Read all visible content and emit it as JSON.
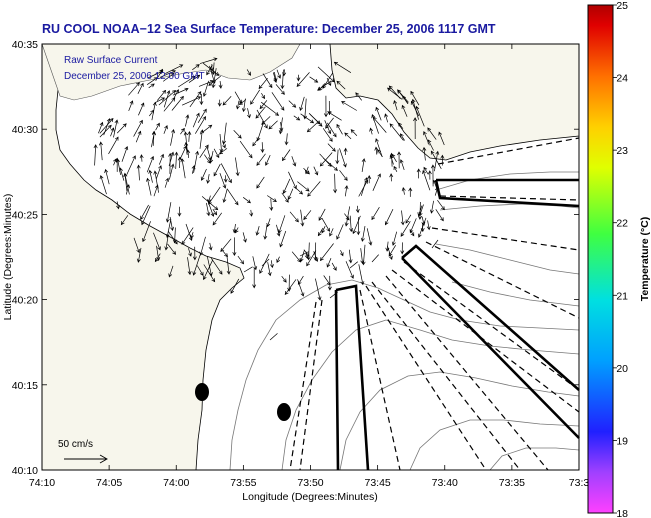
{
  "title": "RU COOL  NOAA−12  Sea Surface Temperature:  December 25, 2006 1117 GMT",
  "legend": {
    "line1": "Raw Surface Current",
    "line2": "December 25, 2006 12:00 GMT"
  },
  "scale_label": "50 cm/s",
  "chart_data": {
    "type": "vector-field-map",
    "title": "RU COOL  NOAA−12  Sea Surface Temperature:  December 25, 2006 1117 GMT",
    "xlabel": "Longitude (Degrees:Minutes)",
    "ylabel": "Latitude (Degrees:Minutes)",
    "x_ticks": [
      "74:10",
      "74:05",
      "74:00",
      "73:55",
      "73:50",
      "73:45",
      "73:40",
      "73:35",
      "73:3"
    ],
    "y_ticks": [
      "40:10",
      "40:15",
      "40:20",
      "40:25",
      "40:30",
      "40:35"
    ],
    "colorbar": {
      "label": "Temperature (°C)",
      "ticks": [
        "18",
        "19",
        "20",
        "21",
        "22",
        "23",
        "24",
        "25"
      ],
      "min": 18,
      "max": 25
    },
    "markers": 2
  }
}
